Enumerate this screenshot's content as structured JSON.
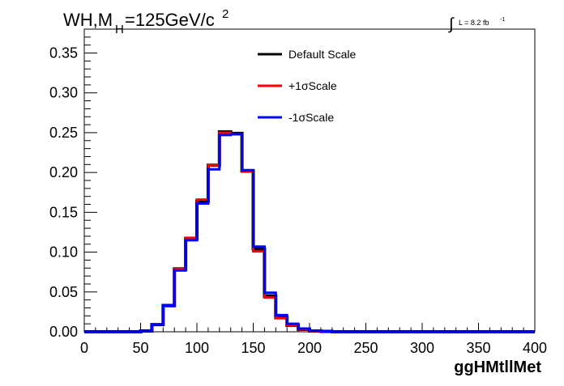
{
  "chart_data": {
    "type": "line",
    "title_main": "WH,M",
    "title_sub": "H",
    "title_rest": "=125GeV/c",
    "title_sup": "2",
    "lumi_label": "L = 8.2 fb",
    "lumi_sup": "-1",
    "xlabel": "ggHMtllMet",
    "ylabel": "",
    "xlim": [
      0,
      400
    ],
    "ylim": [
      0,
      0.38
    ],
    "x_ticks": [
      "0",
      "50",
      "100",
      "150",
      "200",
      "250",
      "300",
      "350",
      "400"
    ],
    "y_ticks": [
      "0.00",
      "0.05",
      "0.10",
      "0.15",
      "0.20",
      "0.25",
      "0.30",
      "0.35"
    ],
    "bin_width": 10,
    "bin_edges_start": 0,
    "series": [
      {
        "name": "Default Scale",
        "color": "#000000",
        "values": [
          0,
          0,
          0,
          0,
          0,
          0.001,
          0.009,
          0.033,
          0.079,
          0.117,
          0.164,
          0.209,
          0.251,
          0.249,
          0.202,
          0.104,
          0.045,
          0.018,
          0.008,
          0.003,
          0.001,
          0.0005,
          0,
          0,
          0,
          0,
          0,
          0,
          0,
          0,
          0,
          0,
          0,
          0,
          0,
          0,
          0,
          0,
          0,
          0
        ]
      },
      {
        "name": "+1σScale",
        "color": "#ff0000",
        "values": [
          0,
          0,
          0,
          0,
          0,
          0.001,
          0.009,
          0.032,
          0.079,
          0.118,
          0.166,
          0.209,
          0.25,
          0.248,
          0.201,
          0.101,
          0.043,
          0.017,
          0.008,
          0.003,
          0.001,
          0.0005,
          0,
          0,
          0,
          0,
          0,
          0,
          0,
          0,
          0,
          0,
          0,
          0,
          0,
          0,
          0,
          0,
          0,
          0
        ]
      },
      {
        "name": "-1σScale",
        "color": "#0000ff",
        "values": [
          0,
          0,
          0,
          0,
          0,
          0.001,
          0.009,
          0.033,
          0.077,
          0.115,
          0.161,
          0.204,
          0.247,
          0.248,
          0.203,
          0.107,
          0.049,
          0.021,
          0.01,
          0.004,
          0.0015,
          0.0005,
          0,
          0,
          0,
          0,
          0,
          0,
          0,
          0,
          0,
          0,
          0,
          0,
          0,
          0,
          0,
          0,
          0,
          0
        ]
      }
    ],
    "legend_position": "top-center",
    "grid": false
  }
}
